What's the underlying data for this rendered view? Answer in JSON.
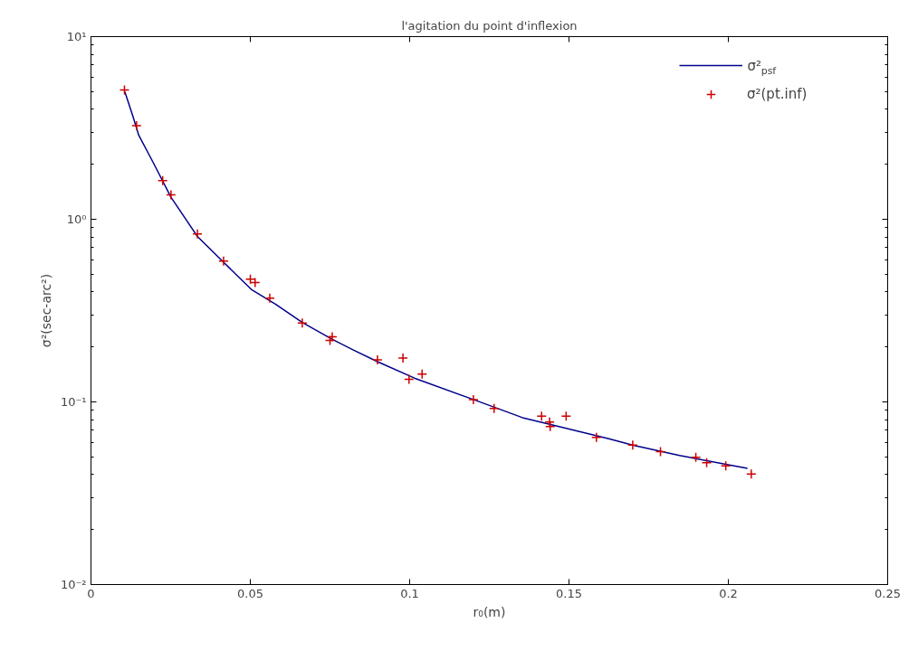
{
  "chart_data": {
    "type": "line",
    "title": "l'agitation du point d'inflexion",
    "xlabel": "r₀(m)",
    "ylabel": "σ²(sec-arc²)",
    "log": "y",
    "grid": false,
    "legend": "top right",
    "xlim": [
      0,
      0.25
    ],
    "xticks": [
      0,
      0.05,
      0.1,
      0.15,
      0.2,
      0.25
    ],
    "ylim": [
      0.01,
      10
    ],
    "yticks": [
      {
        "value": 0.01,
        "label": "10⁻²"
      },
      {
        "value": 0.1,
        "label": "10⁻¹"
      },
      {
        "value": 1,
        "label": "10⁰"
      },
      {
        "value": 10,
        "label": "10¹"
      }
    ],
    "series": [
      {
        "name": "σ²$_{psf}$",
        "type": "line",
        "color": "#00008b",
        "line_style": "solid",
        "marker": "none",
        "x": [
          0.0106,
          0.0131,
          0.015,
          0.0193,
          0.0251,
          0.0334,
          0.0416,
          0.0503,
          0.058,
          0.0663,
          0.0755,
          0.0822,
          0.0899,
          0.1015,
          0.12,
          0.1354,
          0.1451,
          0.1625,
          0.1702,
          0.1847,
          0.1992,
          0.206
        ],
        "values": [
          5.0,
          3.69,
          2.88,
          2.08,
          1.32,
          0.805,
          0.582,
          0.413,
          0.342,
          0.272,
          0.221,
          0.193,
          0.166,
          0.135,
          0.103,
          0.082,
          0.0746,
          0.0628,
          0.0578,
          0.0509,
          0.0455,
          0.0433
        ]
      },
      {
        "name": "σ²(pt.inf)",
        "type": "scatter",
        "color": "#cc0000",
        "marker": "cross",
        "x": [
          0.0105,
          0.0143,
          0.0225,
          0.0251,
          0.0334,
          0.0416,
          0.05,
          0.0515,
          0.0561,
          0.0663,
          0.0757,
          0.075,
          0.0899,
          0.0979,
          0.0998,
          0.1039,
          0.12,
          0.1265,
          0.1414,
          0.1439,
          0.1441,
          0.1491,
          0.1586,
          0.17,
          0.1787,
          0.1898,
          0.1932,
          0.1992,
          0.2072
        ],
        "values": [
          5.1,
          3.25,
          1.63,
          1.36,
          0.83,
          0.59,
          0.47,
          0.45,
          0.37,
          0.27,
          0.227,
          0.217,
          0.17,
          0.174,
          0.133,
          0.142,
          0.103,
          0.092,
          0.0836,
          0.0775,
          0.0732,
          0.0836,
          0.064,
          0.058,
          0.0534,
          0.0497,
          0.0464,
          0.0446,
          0.0403
        ]
      }
    ]
  }
}
